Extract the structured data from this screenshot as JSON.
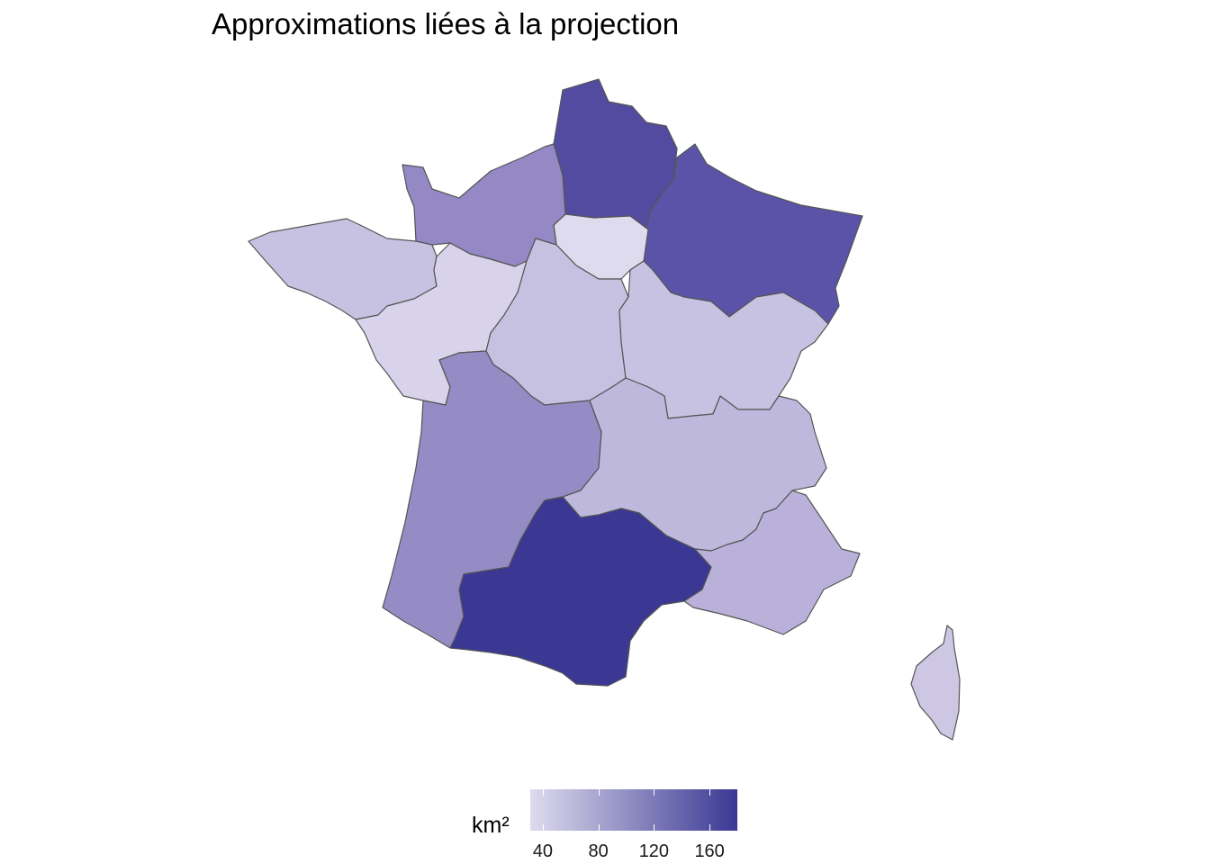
{
  "title": "Approximations liées à la projection",
  "legend": {
    "title": "km²",
    "ticks": [
      "40",
      "80",
      "120",
      "160"
    ],
    "tick_values": [
      40,
      80,
      120,
      160
    ],
    "range": [
      31,
      180
    ],
    "color_low": "#dedbee",
    "color_high": "#3a3893"
  },
  "regions": [
    {
      "id": "hauts-de-france",
      "value": 160,
      "color": "#524ba0"
    },
    {
      "id": "grand-est",
      "value": 150,
      "color": "#5b53a7"
    },
    {
      "id": "normandie",
      "value": 95,
      "color": "#9489c4"
    },
    {
      "id": "ile-de-france",
      "value": 31,
      "color": "#dedbee"
    },
    {
      "id": "bretagne",
      "value": 50,
      "color": "#c8c2e2"
    },
    {
      "id": "pays-de-la-loire",
      "value": 40,
      "color": "#d8d3ea"
    },
    {
      "id": "centre-val-de-loire",
      "value": 50,
      "color": "#c7c1e1"
    },
    {
      "id": "bourgogne-franche-comte",
      "value": 50,
      "color": "#c8c2e2"
    },
    {
      "id": "nouvelle-aquitaine",
      "value": 92,
      "color": "#958bc5"
    },
    {
      "id": "auvergne-rhone-alpes",
      "value": 60,
      "color": "#bfb8dd"
    },
    {
      "id": "occitanie",
      "value": 180,
      "color": "#3a3893"
    },
    {
      "id": "provence-alpes-cote-d-azur",
      "value": 65,
      "color": "#b9b1da"
    },
    {
      "id": "corse",
      "value": 45,
      "color": "#cdc7e4"
    }
  ]
}
